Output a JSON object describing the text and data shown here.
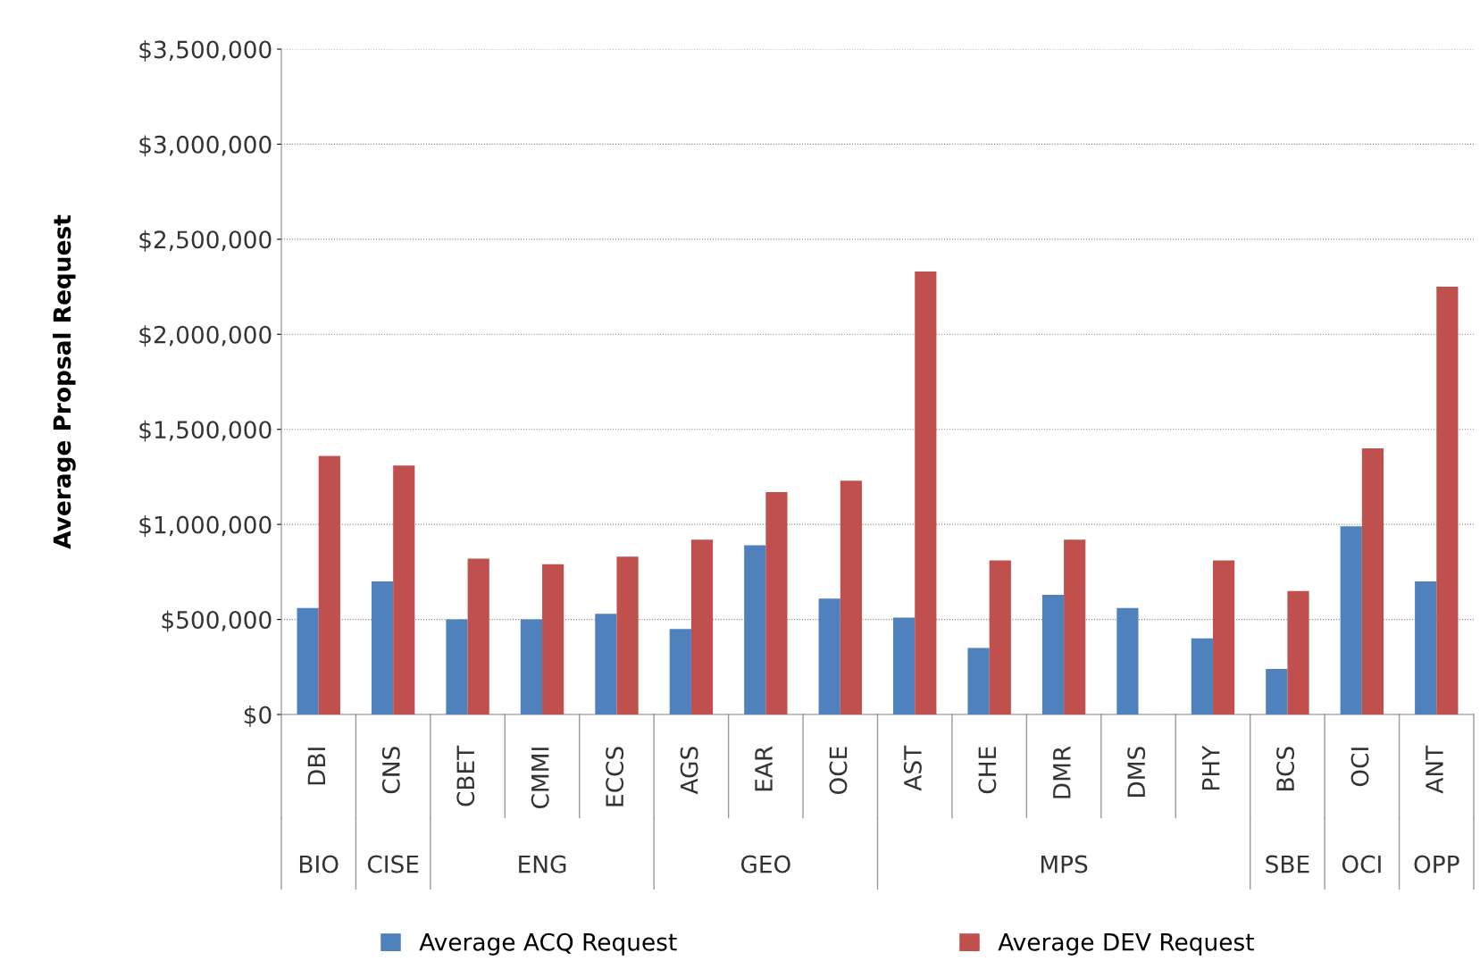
{
  "chart_data": {
    "type": "bar",
    "ylabel": "Average Propsal Request",
    "categories": [
      "DBI",
      "CNS",
      "CBET",
      "CMMI",
      "ECCS",
      "AGS",
      "EAR",
      "OCE",
      "AST",
      "CHE",
      "DMR",
      "DMS",
      "PHY",
      "BCS",
      "OCI",
      "ANT"
    ],
    "series": [
      {
        "name": "Average ACQ Request",
        "color": "#4f81bd",
        "values": [
          560000,
          700000,
          500000,
          500000,
          530000,
          450000,
          890000,
          610000,
          510000,
          350000,
          630000,
          560000,
          400000,
          240000,
          990000,
          700000
        ]
      },
      {
        "name": "Average DEV Request",
        "color": "#c0504d",
        "values": [
          1360000,
          1310000,
          820000,
          790000,
          830000,
          920000,
          1170000,
          1230000,
          2330000,
          810000,
          920000,
          null,
          810000,
          650000,
          1400000,
          2250000
        ]
      }
    ],
    "annotations": [
      "BIO",
      "CISE",
      "ENG",
      "GEO",
      "MPS",
      "SBE",
      "OCI",
      "OPP"
    ],
    "ylim": [
      0,
      3500000
    ],
    "yticks": [
      {
        "value": 0,
        "label": "$0"
      },
      {
        "value": 500000,
        "label": "$500,000"
      },
      {
        "value": 1000000,
        "label": "$1,000,000"
      },
      {
        "value": 1500000,
        "label": "$1,500,000"
      },
      {
        "value": 2000000,
        "label": "$2,000,000"
      },
      {
        "value": 2500000,
        "label": "$2,500,000"
      },
      {
        "value": 3000000,
        "label": "$3,000,000"
      },
      {
        "value": 3500000,
        "label": "$3,500,000"
      }
    ],
    "grid": "y",
    "legend": "bottom"
  }
}
